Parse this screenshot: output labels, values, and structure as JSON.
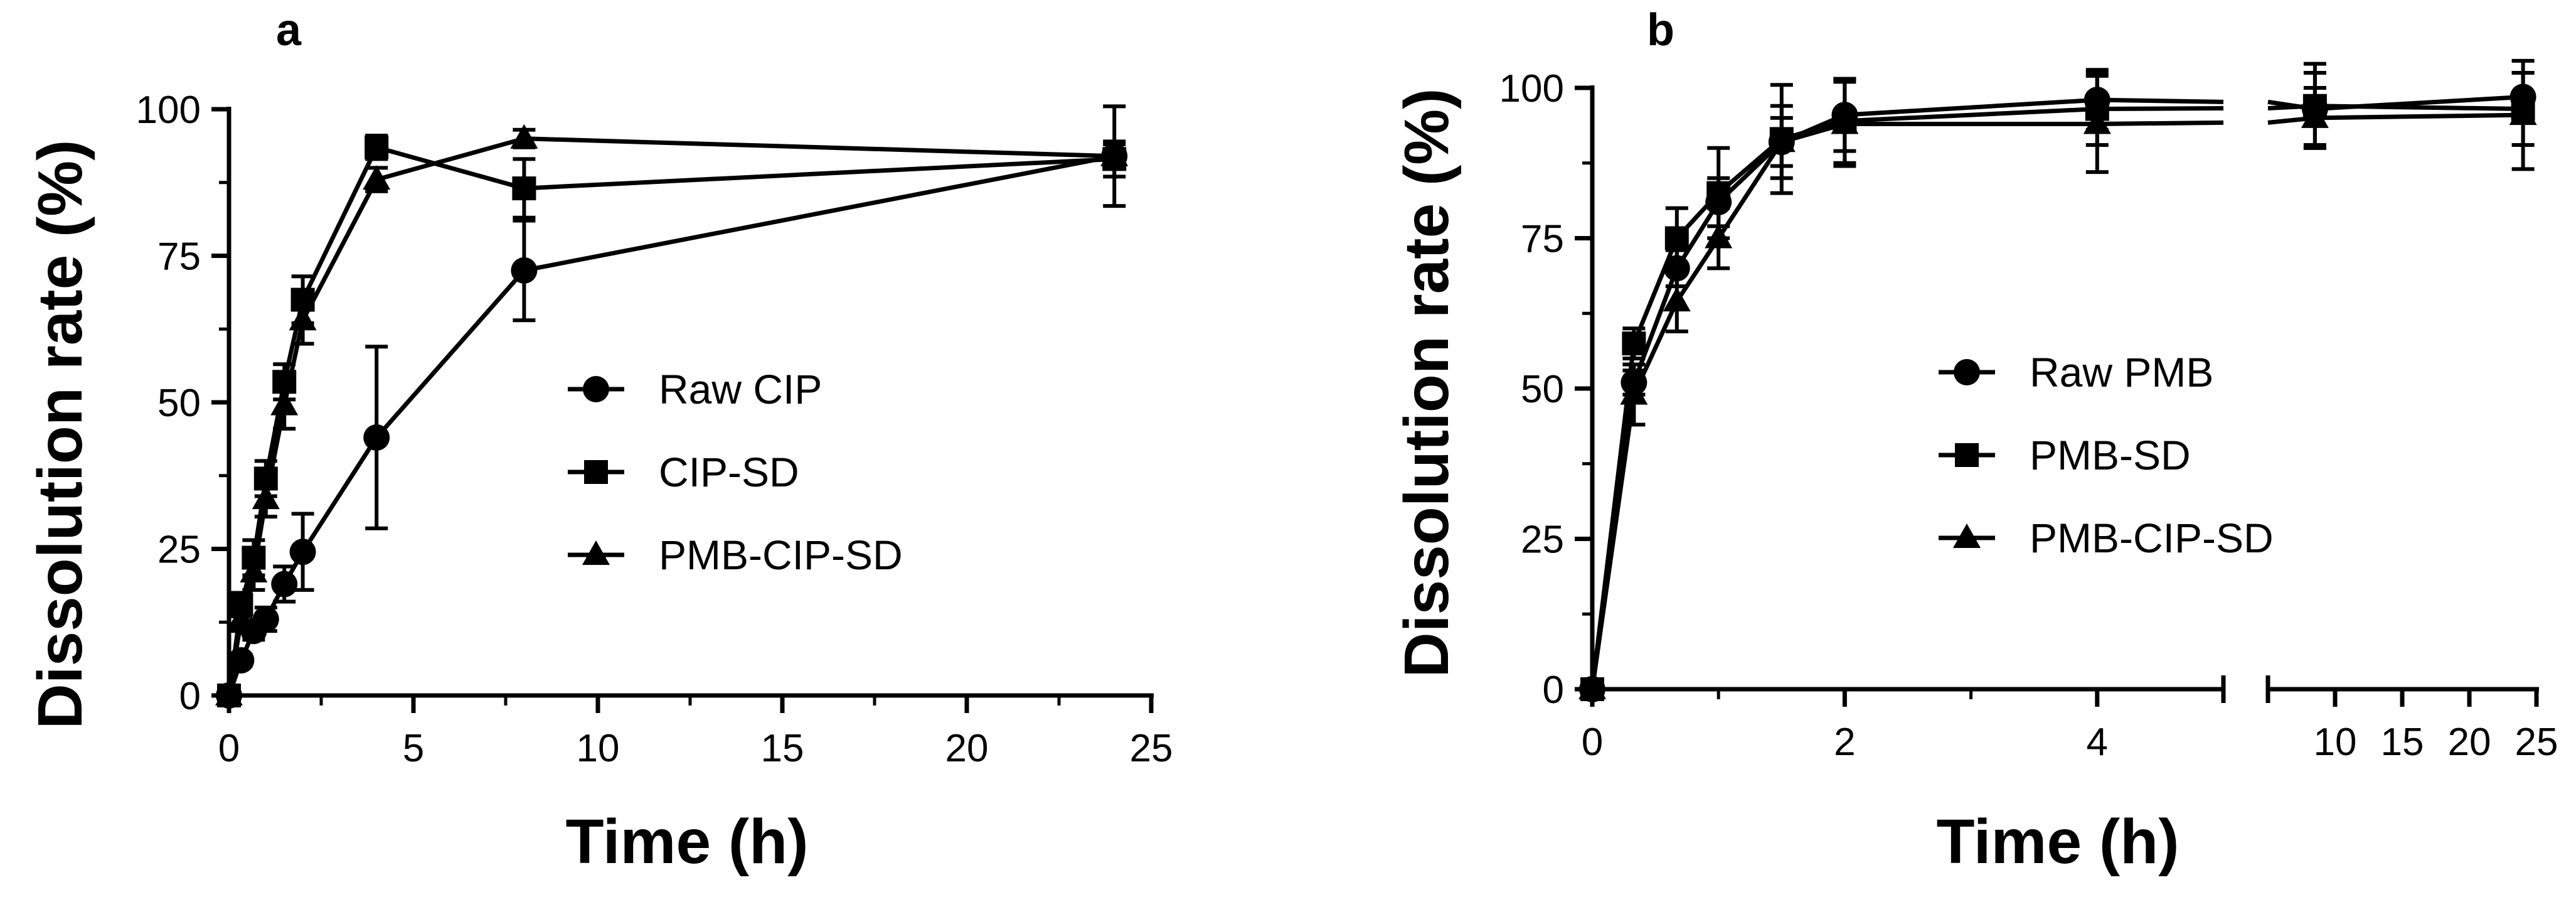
{
  "chart_data": [
    {
      "panel": "a",
      "type": "line",
      "xlabel": "Time (h)",
      "ylabel": "Dissolution rate (%)",
      "xlim": [
        0,
        25
      ],
      "ylim": [
        0,
        100
      ],
      "xticks": [
        0,
        5,
        10,
        15,
        20,
        25
      ],
      "yticks": [
        0,
        25,
        50,
        75,
        100
      ],
      "legend_position": "center-right",
      "series": [
        {
          "name": "Raw CIP",
          "marker": "circle",
          "x": [
            0,
            0.33,
            0.67,
            1,
            1.5,
            2,
            4,
            8,
            24
          ],
          "y": [
            0,
            6,
            11,
            13,
            19,
            24.5,
            44,
            72.5,
            92
          ],
          "err": [
            0,
            1,
            1.5,
            2,
            3,
            6.5,
            15.5,
            8.5,
            8.5
          ]
        },
        {
          "name": "CIP-SD",
          "marker": "square",
          "x": [
            0,
            0.33,
            0.67,
            1,
            1.5,
            2,
            4,
            8,
            24
          ],
          "y": [
            0,
            15.5,
            23.5,
            37,
            53.5,
            67.5,
            93.5,
            86.5,
            91.5
          ],
          "err": [
            0,
            2,
            3,
            3,
            3,
            4,
            2,
            5,
            3
          ]
        },
        {
          "name": "PMB-CIP-SD",
          "marker": "triangle",
          "x": [
            0,
            0.33,
            0.67,
            1,
            1.5,
            2,
            4,
            8,
            24
          ],
          "y": [
            0,
            13,
            21,
            33.5,
            49.5,
            64,
            88,
            95,
            92
          ],
          "err": [
            0,
            2,
            3,
            3,
            4,
            4,
            2,
            1.5,
            2
          ]
        }
      ]
    },
    {
      "panel": "b",
      "type": "line",
      "xlabel": "Time (h)",
      "ylabel": "Dissolution rate (%)",
      "x_axis_break": {
        "segment1": [
          0,
          5
        ],
        "segment2": [
          5,
          25
        ]
      },
      "xticks_segment1": [
        0,
        2,
        4
      ],
      "xticks_segment2": [
        10,
        15,
        20,
        25
      ],
      "ylim": [
        0,
        100
      ],
      "yticks": [
        0,
        25,
        50,
        75,
        100
      ],
      "legend_position": "center-right",
      "series": [
        {
          "name": "Raw PMB",
          "marker": "circle",
          "x": [
            0,
            0.33,
            0.67,
            1,
            1.5,
            2,
            4,
            8.5,
            24
          ],
          "y": [
            0,
            51,
            70,
            81,
            91,
            95.5,
            98,
            96.5,
            98.5
          ],
          "err": [
            0,
            2,
            3,
            4,
            6,
            6,
            5,
            6,
            4
          ]
        },
        {
          "name": "PMB-SD",
          "marker": "square",
          "x": [
            0,
            0.33,
            0.67,
            1,
            1.5,
            2,
            4,
            8.5,
            24
          ],
          "y": [
            0,
            57.5,
            75,
            82.5,
            91.5,
            94.5,
            96.5,
            97,
            96.5
          ],
          "err": [
            0,
            2.5,
            5,
            7.5,
            9,
            7,
            6,
            7,
            6
          ]
        },
        {
          "name": "PMB-CIP-SD",
          "marker": "triangle",
          "x": [
            0,
            0.33,
            0.67,
            1,
            1.5,
            2,
            4,
            8.5,
            24
          ],
          "y": [
            0,
            49,
            64.5,
            75,
            91,
            94,
            94,
            95,
            95.5
          ],
          "err": [
            0,
            5,
            5,
            5,
            4,
            7,
            8,
            5,
            9
          ]
        }
      ]
    }
  ]
}
